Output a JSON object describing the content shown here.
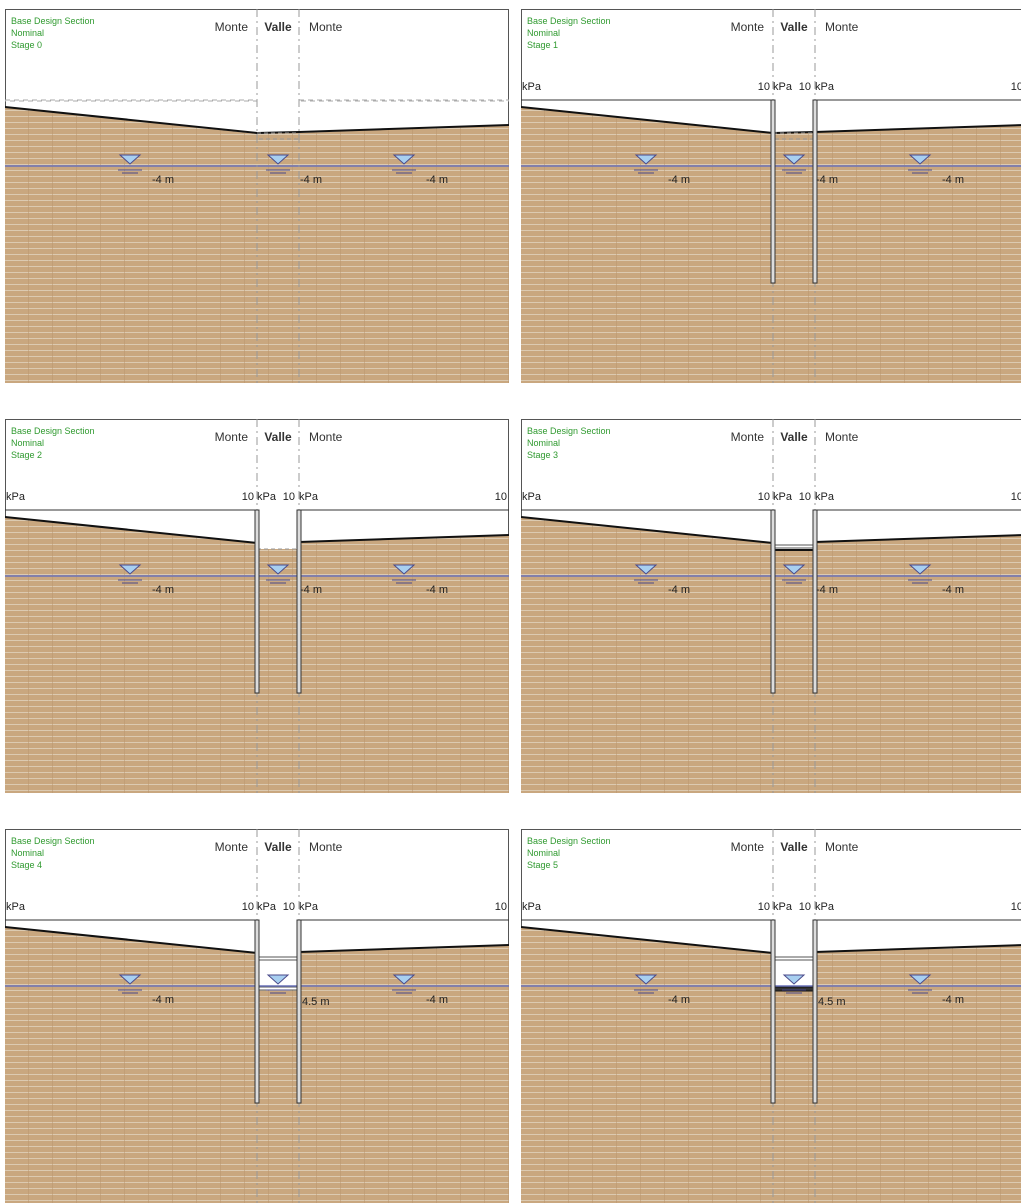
{
  "colors": {
    "soil": "#c9a77f",
    "soil_line": "#e3d6c2",
    "soil_edge": "#b9956c",
    "water": "#6a72b9",
    "label_green": "#2f9a2f",
    "frame": "#555555",
    "triangle": "#a8cff0"
  },
  "panels": [
    {
      "section": "Base Design Section",
      "design": "Nominal",
      "stage": "Stage 0",
      "side_left": "Monte",
      "center": "Valle",
      "side_right": "Monte",
      "surcharge": {
        "left_unit": "",
        "left_value": "",
        "mid_left": "",
        "mid_right": "",
        "right_value": ""
      },
      "water_levels": {
        "left": "-4 m",
        "center": "-4 m",
        "right": "-4 m"
      },
      "walls_installed": false,
      "struts": 0
    },
    {
      "section": "Base Design Section",
      "design": "Nominal",
      "stage": "Stage 1",
      "side_left": "Monte",
      "center": "Valle",
      "side_right": "Monte",
      "surcharge": {
        "left_unit": "kPa",
        "left_value": "10",
        "mid_left": "kPa",
        "mid_right": "10",
        "right_value": "kPa",
        "far_right": "10"
      },
      "water_levels": {
        "left": "-4 m",
        "center": "-4 m",
        "right": "-4 m"
      },
      "walls_installed": true,
      "struts": 0
    },
    {
      "section": "Base Design Section",
      "design": "Nominal",
      "stage": "Stage 2",
      "side_left": "Monte",
      "center": "Valle",
      "side_right": "Monte",
      "surcharge": {
        "left_unit": "kPa",
        "left_value": "10",
        "mid_left": "kPa",
        "mid_right": "10",
        "right_value": "kPa",
        "far_right": "10"
      },
      "water_levels": {
        "left": "-4 m",
        "center": "-4 m",
        "right": "-4 m"
      },
      "walls_installed": true,
      "struts": 0
    },
    {
      "section": "Base Design Section",
      "design": "Nominal",
      "stage": "Stage 3",
      "side_left": "Monte",
      "center": "Valle",
      "side_right": "Monte",
      "surcharge": {
        "left_unit": "kPa",
        "left_value": "10",
        "mid_left": "kPa",
        "mid_right": "10",
        "right_value": "kPa",
        "far_right": "10"
      },
      "water_levels": {
        "left": "-4 m",
        "center": "-4 m",
        "right": "-4 m"
      },
      "walls_installed": true,
      "struts": 1
    },
    {
      "section": "Base Design Section",
      "design": "Nominal",
      "stage": "Stage 4",
      "side_left": "Monte",
      "center": "Valle",
      "side_right": "Monte",
      "surcharge": {
        "left_unit": "kPa",
        "left_value": "10",
        "mid_left": "kPa",
        "mid_right": "10",
        "right_value": "kPa",
        "far_right": "10"
      },
      "water_levels": {
        "left": "-4 m",
        "center": "4.5 m",
        "right": "-4 m"
      },
      "walls_installed": true,
      "struts": 2
    },
    {
      "section": "Base Design Section",
      "design": "Nominal",
      "stage": "Stage 5",
      "side_left": "Monte",
      "center": "Valle",
      "side_right": "Monte",
      "surcharge": {
        "left_unit": "kPa",
        "left_value": "10",
        "mid_left": "kPa",
        "mid_right": "10",
        "right_value": "kPa",
        "far_right": "10"
      },
      "water_levels": {
        "left": "-4 m",
        "center": "4.5 m",
        "right": "-4 m"
      },
      "walls_installed": true,
      "struts": 2
    }
  ]
}
